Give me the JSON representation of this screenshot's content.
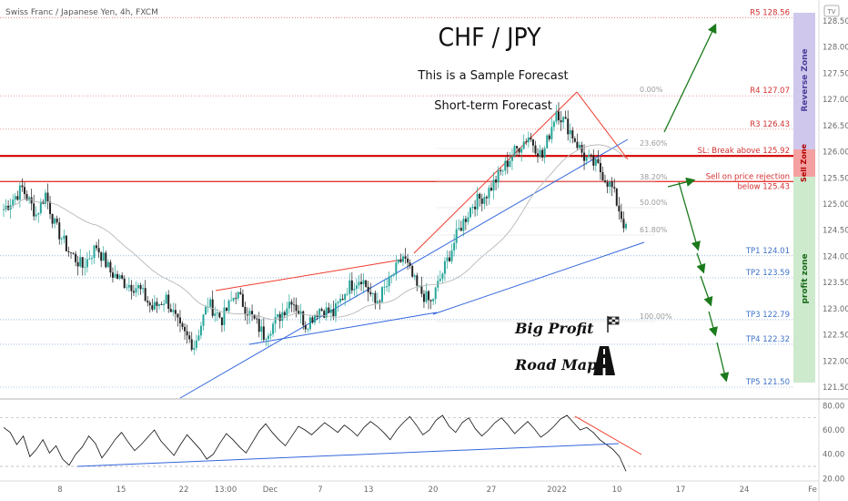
{
  "symbol_header": "Swiss Franc / Japanese Yen, 4h, FXCM",
  "logo_text": "TV",
  "title": "CHF / JPY",
  "subtitle_1": "This is a Sample Forecast",
  "subtitle_2": "Short-term Forecast",
  "big_profit_label": "Big Profit",
  "road_map_label": "Road Map",
  "zones": {
    "reverse": "Reverse Zone",
    "sell": "Sell Zone",
    "profit": "profit zone"
  },
  "colors": {
    "bull": "#26a69a",
    "bear": "#222222",
    "resistance": "#e53935",
    "sl_line": "#d50000",
    "target": "#5c8fd6",
    "trend_red": "#ef3b2c",
    "trend_blue": "#3366dd",
    "arrow_green": "#1b7a1b",
    "reverse_zone": "#cfc8ec",
    "sell_zone": "#f4a0a0",
    "profit_zone": "#cdeacd"
  },
  "levels": [
    {
      "label": "R5 128.56",
      "price": 128.56,
      "kind": "resistance"
    },
    {
      "label": "R4 127.07",
      "price": 127.07,
      "kind": "resistance"
    },
    {
      "label": "R3 126.43",
      "price": 126.43,
      "kind": "resistance"
    },
    {
      "label": "SL: Break above 125.92",
      "price": 125.92,
      "kind": "stop"
    },
    {
      "label": "Sell on price rejection",
      "label2": "below 125.43",
      "price": 125.43,
      "kind": "entry"
    },
    {
      "label": "TP1 124.01",
      "price": 124.01,
      "kind": "target"
    },
    {
      "label": "TP2 123.59",
      "price": 123.59,
      "kind": "target"
    },
    {
      "label": "TP3 122.79",
      "price": 122.79,
      "kind": "target"
    },
    {
      "label": "TP4 122.32",
      "price": 122.32,
      "kind": "target"
    },
    {
      "label": "TP5 121.50",
      "price": 121.5,
      "kind": "target"
    }
  ],
  "fib_labels": [
    "0.00%",
    "23.60%",
    "38.20%",
    "50.00%",
    "61.80%",
    "100.00%"
  ],
  "chart_data": [
    {
      "type": "candlestick",
      "title": "Swiss Franc / Japanese Yen, 4h, FXCM",
      "ylim": [
        121.3,
        128.9
      ],
      "y_ticks": [
        121.5,
        122.0,
        122.5,
        123.0,
        123.5,
        124.0,
        124.5,
        125.0,
        125.5,
        126.0,
        126.5,
        127.0,
        127.5,
        128.0,
        128.5
      ],
      "y_tick_labels": [
        "121.50",
        "122.00",
        "122.50",
        "123.00",
        "123.50",
        "124.00",
        "124.50",
        "125.00",
        "125.50",
        "126.00",
        "126.50",
        "127.00",
        "127.50",
        "128.00",
        "128.50"
      ],
      "x_ticks": [
        "8",
        "15",
        "22",
        "13:00",
        "Dec",
        "7",
        "13",
        "20",
        "27",
        "2022",
        "10",
        "17",
        "24",
        "Fe"
      ],
      "series": [
        {
          "kind": "close_path",
          "x_index": [
            0,
            8,
            14,
            18,
            22,
            28,
            34,
            40,
            46,
            52,
            58,
            64,
            70,
            76,
            82,
            88,
            94,
            100,
            106,
            112,
            118,
            124,
            130,
            136,
            142,
            148,
            154,
            160,
            166,
            172,
            178,
            184,
            190,
            196,
            202,
            208,
            214,
            220,
            226,
            232,
            238,
            244,
            250,
            256,
            262,
            268
          ],
          "close": [
            124.9,
            125.3,
            124.8,
            125.2,
            124.6,
            124.1,
            123.8,
            124.2,
            123.7,
            123.5,
            123.4,
            123.0,
            123.2,
            122.6,
            122.3,
            123.1,
            122.8,
            123.3,
            122.9,
            122.5,
            122.8,
            123.2,
            122.7,
            123.0,
            122.9,
            123.4,
            123.6,
            123.1,
            123.5,
            124.0,
            123.4,
            123.1,
            123.8,
            124.5,
            125.0,
            125.2,
            125.6,
            126.0,
            126.3,
            125.9,
            126.8,
            126.4,
            125.9,
            125.7,
            125.3,
            124.5
          ]
        },
        {
          "name": "",
          "kind": "moving_average",
          "note": "grey smoothed line"
        }
      ]
    },
    {
      "type": "line",
      "title": "RSI",
      "ylim": [
        18,
        84
      ],
      "y_ticks": [
        20,
        40,
        60,
        80
      ],
      "y_tick_labels": [
        "20.00",
        "40.00",
        "60.00",
        "80.00"
      ],
      "dashed_levels": [
        30,
        70
      ],
      "values": [
        62,
        58,
        48,
        55,
        38,
        44,
        52,
        41,
        47,
        36,
        31,
        40,
        46,
        55,
        49,
        37,
        44,
        52,
        58,
        50,
        43,
        48,
        54,
        60,
        51,
        45,
        39,
        48,
        56,
        50,
        44,
        36,
        40,
        49,
        57,
        52,
        46,
        41,
        50,
        59,
        65,
        58,
        52,
        47,
        55,
        63,
        60,
        56,
        61,
        66,
        62,
        58,
        64,
        60,
        55,
        62,
        67,
        63,
        58,
        52,
        60,
        66,
        71,
        64,
        56,
        60,
        68,
        72,
        63,
        58,
        66,
        70,
        61,
        55,
        60,
        66,
        70,
        64,
        57,
        62,
        67,
        61,
        54,
        58,
        63,
        69,
        72,
        66,
        60,
        62,
        58,
        52,
        48,
        44,
        38,
        26
      ]
    }
  ]
}
